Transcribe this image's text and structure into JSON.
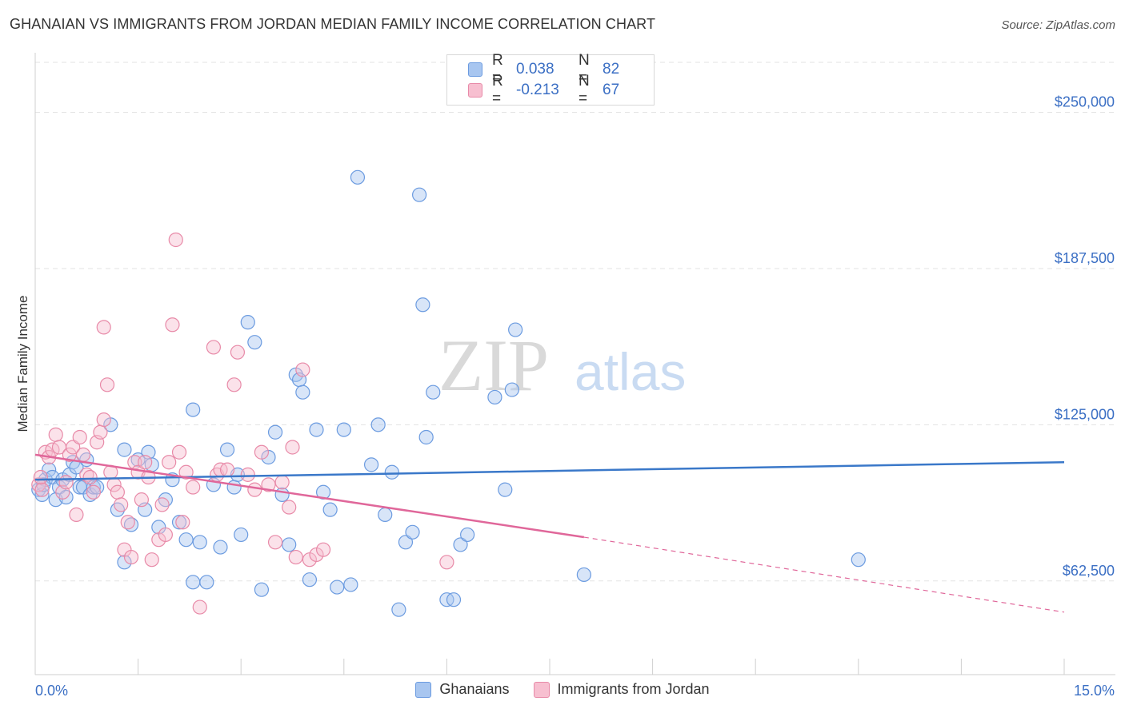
{
  "header": {
    "title": "GHANAIAN VS IMMIGRANTS FROM JORDAN MEDIAN FAMILY INCOME CORRELATION CHART",
    "source": "Source: ZipAtlas.com"
  },
  "watermark": {
    "zip": "ZIP",
    "atlas": "atlas"
  },
  "legend_top": {
    "rows": [
      {
        "r_label": "R =",
        "r_value": "0.038",
        "n_label": "N =",
        "n_value": "82",
        "color": "#a8c6f0",
        "stroke": "#6b9be0"
      },
      {
        "r_label": "R =",
        "r_value": "-0.213",
        "n_label": "N =",
        "n_value": "67",
        "color": "#f7bfd0",
        "stroke": "#e88aa8"
      }
    ]
  },
  "legend_bottom": {
    "items": [
      {
        "label": "Ghanaians",
        "color": "#a8c6f0",
        "stroke": "#6b9be0"
      },
      {
        "label": "Immigrants from Jordan",
        "color": "#f7bfd0",
        "stroke": "#e88aa8"
      }
    ]
  },
  "chart_data": {
    "type": "scatter",
    "title": "GHANAIAN VS IMMIGRANTS FROM JORDAN MEDIAN FAMILY INCOME CORRELATION CHART",
    "xlabel": "",
    "ylabel": "Median Family Income",
    "xlim": [
      0,
      15
    ],
    "ylim": [
      25000,
      270000
    ],
    "x_tick_labels": [
      "0.0%",
      "15.0%"
    ],
    "y_ticks": [
      62500,
      125000,
      187500,
      250000
    ],
    "y_tick_labels": [
      "$62,500",
      "$125,000",
      "$187,500",
      "$250,000"
    ],
    "grid": true,
    "series": [
      {
        "name": "Ghanaians",
        "color": "#6b9be0",
        "fill": "#a8c6f0",
        "trend": {
          "x": [
            0,
            15
          ],
          "y": [
            103000,
            110000
          ],
          "color": "#3a78c9"
        },
        "points": [
          [
            0.05,
            99000
          ],
          [
            0.1,
            97000
          ],
          [
            0.15,
            103000
          ],
          [
            0.2,
            107000
          ],
          [
            0.25,
            104000
          ],
          [
            0.3,
            95000
          ],
          [
            0.35,
            100000
          ],
          [
            0.4,
            103000
          ],
          [
            0.45,
            96000
          ],
          [
            0.5,
            105000
          ],
          [
            0.55,
            110000
          ],
          [
            0.6,
            108000
          ],
          [
            0.65,
            100000
          ],
          [
            0.7,
            100000
          ],
          [
            0.75,
            111000
          ],
          [
            0.8,
            97000
          ],
          [
            0.85,
            100000
          ],
          [
            0.9,
            100000
          ],
          [
            1.1,
            125000
          ],
          [
            1.2,
            91000
          ],
          [
            1.3,
            115000
          ],
          [
            1.3,
            70000
          ],
          [
            1.4,
            85000
          ],
          [
            1.5,
            111000
          ],
          [
            1.6,
            91000
          ],
          [
            1.65,
            114000
          ],
          [
            1.7,
            109000
          ],
          [
            1.8,
            84000
          ],
          [
            1.9,
            95000
          ],
          [
            2.0,
            103000
          ],
          [
            2.1,
            86000
          ],
          [
            2.2,
            79000
          ],
          [
            2.3,
            62000
          ],
          [
            2.3,
            131000
          ],
          [
            2.4,
            78000
          ],
          [
            2.5,
            62000
          ],
          [
            2.6,
            101000
          ],
          [
            2.7,
            76000
          ],
          [
            2.8,
            115000
          ],
          [
            2.9,
            100000
          ],
          [
            2.95,
            105000
          ],
          [
            3.0,
            81000
          ],
          [
            3.1,
            166000
          ],
          [
            3.2,
            158000
          ],
          [
            3.3,
            59000
          ],
          [
            3.4,
            112000
          ],
          [
            3.5,
            122000
          ],
          [
            3.6,
            97000
          ],
          [
            3.7,
            77000
          ],
          [
            3.8,
            145000
          ],
          [
            3.85,
            143000
          ],
          [
            3.9,
            138000
          ],
          [
            4.0,
            63000
          ],
          [
            4.1,
            123000
          ],
          [
            4.2,
            98000
          ],
          [
            4.3,
            91000
          ],
          [
            4.4,
            60000
          ],
          [
            4.5,
            123000
          ],
          [
            4.6,
            61000
          ],
          [
            4.7,
            224000
          ],
          [
            4.9,
            109000
          ],
          [
            5.0,
            125000
          ],
          [
            5.1,
            89000
          ],
          [
            5.2,
            106000
          ],
          [
            5.3,
            51000
          ],
          [
            5.4,
            78000
          ],
          [
            5.5,
            82000
          ],
          [
            5.6,
            217000
          ],
          [
            5.65,
            173000
          ],
          [
            5.7,
            120000
          ],
          [
            5.8,
            138000
          ],
          [
            6.0,
            55000
          ],
          [
            6.1,
            55000
          ],
          [
            6.2,
            77000
          ],
          [
            6.3,
            81000
          ],
          [
            6.7,
            136000
          ],
          [
            6.85,
            99000
          ],
          [
            6.95,
            139000
          ],
          [
            7.0,
            163000
          ],
          [
            8.0,
            65000
          ],
          [
            12.0,
            71000
          ],
          [
            0.12,
            101000
          ]
        ]
      },
      {
        "name": "Immigrants from Jordan",
        "color": "#e88aa8",
        "fill": "#f7bfd0",
        "trend": {
          "x": [
            0,
            8,
            15
          ],
          "y": [
            113000,
            80000,
            50000
          ],
          "color": "#e0679a",
          "solid_until": 8
        },
        "points": [
          [
            0.05,
            101000
          ],
          [
            0.1,
            99000
          ],
          [
            0.15,
            114000
          ],
          [
            0.2,
            112000
          ],
          [
            0.25,
            115000
          ],
          [
            0.3,
            121000
          ],
          [
            0.35,
            116000
          ],
          [
            0.4,
            98000
          ],
          [
            0.45,
            102000
          ],
          [
            0.5,
            113000
          ],
          [
            0.55,
            116000
          ],
          [
            0.6,
            89000
          ],
          [
            0.65,
            120000
          ],
          [
            0.7,
            113000
          ],
          [
            0.75,
            105000
          ],
          [
            0.8,
            104000
          ],
          [
            0.85,
            98000
          ],
          [
            0.9,
            118000
          ],
          [
            0.95,
            122000
          ],
          [
            1.0,
            127000
          ],
          [
            1.0,
            164000
          ],
          [
            1.05,
            141000
          ],
          [
            1.1,
            106000
          ],
          [
            1.15,
            101000
          ],
          [
            1.2,
            98000
          ],
          [
            1.25,
            93000
          ],
          [
            1.3,
            75000
          ],
          [
            1.35,
            86000
          ],
          [
            1.4,
            72000
          ],
          [
            1.45,
            110000
          ],
          [
            1.5,
            106000
          ],
          [
            1.6,
            110000
          ],
          [
            1.65,
            104000
          ],
          [
            1.7,
            71000
          ],
          [
            1.8,
            79000
          ],
          [
            1.85,
            93000
          ],
          [
            1.9,
            81000
          ],
          [
            1.95,
            110000
          ],
          [
            2.0,
            165000
          ],
          [
            2.05,
            199000
          ],
          [
            2.1,
            114000
          ],
          [
            2.15,
            86000
          ],
          [
            2.2,
            106000
          ],
          [
            2.3,
            100000
          ],
          [
            2.4,
            52000
          ],
          [
            2.6,
            156000
          ],
          [
            2.65,
            105000
          ],
          [
            2.7,
            107000
          ],
          [
            2.8,
            107000
          ],
          [
            2.9,
            141000
          ],
          [
            2.95,
            154000
          ],
          [
            3.1,
            105000
          ],
          [
            3.2,
            99000
          ],
          [
            3.3,
            114000
          ],
          [
            3.4,
            101000
          ],
          [
            3.5,
            78000
          ],
          [
            3.6,
            102000
          ],
          [
            3.7,
            92000
          ],
          [
            3.75,
            116000
          ],
          [
            3.8,
            72000
          ],
          [
            3.9,
            147000
          ],
          [
            4.0,
            71000
          ],
          [
            4.1,
            73000
          ],
          [
            4.2,
            75000
          ],
          [
            6.0,
            70000
          ],
          [
            0.08,
            104000
          ],
          [
            1.55,
            95000
          ]
        ]
      }
    ]
  }
}
